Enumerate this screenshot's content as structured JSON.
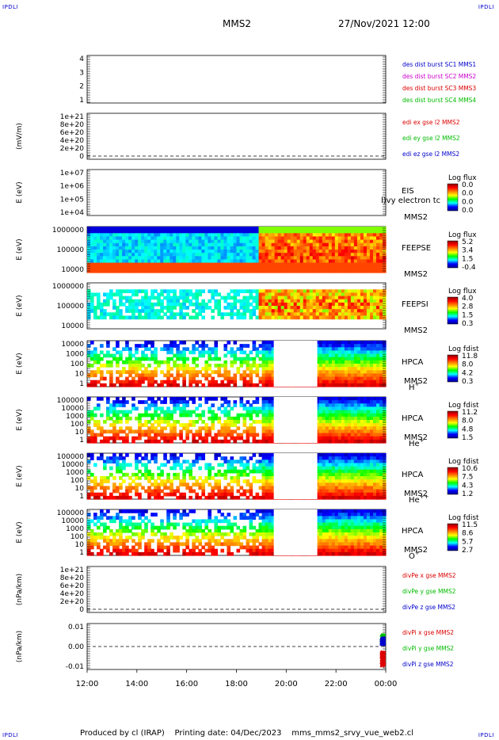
{
  "corners": {
    "tl": "IPDLI",
    "tr": "IPDLI",
    "bl": "IPDLI",
    "br": "IPDLI"
  },
  "header": {
    "spacecraft": "MMS2",
    "datetime": "27/Nov/2021 12:00"
  },
  "footer": {
    "text": "Produced by cl (IRAP)    Printing date: 04/Dec/2023    mms_mms2_srvy_vue_web2.cl"
  },
  "colors": {
    "mms1": "#0000cc",
    "mms2": "#cc00cc",
    "mms3": "#dd0000",
    "mms4": "#00bb00",
    "x": "#dd0000",
    "y": "#00bb00",
    "z": "#0000cc",
    "colorbar": [
      "#00008f",
      "#0000ff",
      "#00ffff",
      "#00ff00",
      "#ffff00",
      "#ff8000",
      "#ff0000",
      "#8f0000"
    ]
  },
  "chart_data": {
    "type": "heatmap",
    "time_axis": {
      "ticks": [
        "12:00",
        "14:00",
        "16:00",
        "18:00",
        "20:00",
        "22:00",
        "00:00"
      ],
      "range": [
        "12:00",
        "00:00"
      ]
    },
    "panels": [
      {
        "id": "dist",
        "type": "line",
        "ylabel": "",
        "ylim": [
          0.5,
          4.5
        ],
        "ticks": [
          "4",
          "3",
          "2",
          "1"
        ],
        "legend": [
          {
            "text": "des dist burst SC1 MMS1",
            "color": "#0000cc"
          },
          {
            "text": "des dist burst SC2 MMS2",
            "color": "#cc00cc"
          },
          {
            "text": "des dist burst SC3 MMS3",
            "color": "#dd0000"
          },
          {
            "text": "des dist burst SC4 MMS4",
            "color": "#00bb00"
          }
        ]
      },
      {
        "id": "edi",
        "type": "line",
        "ylabel": "(mV/m)",
        "ticks": [
          "1e+21",
          "8e+20",
          "6e+20",
          "4e+20",
          "2e+20",
          "0"
        ],
        "zero_line": true,
        "legend": [
          {
            "text": "edi ex gse l2 MMS2",
            "color": "#dd0000"
          },
          {
            "text": "edi ey gse l2 MMS2",
            "color": "#00bb00"
          },
          {
            "text": "edi ez gse l2 MMS2",
            "color": "#0000cc"
          }
        ]
      },
      {
        "id": "eis",
        "type": "heatmap",
        "ylabel": "E (eV)",
        "scale": "log",
        "ticks": [
          "1e+07",
          "1e+06",
          "1e+05",
          "1e+04"
        ],
        "labels": [
          "EIS",
          "MMS2"
        ],
        "overlay": "l)vy electron tc",
        "colorbar": {
          "title": "Log flux",
          "values": [
            "0.0",
            "0.0",
            "0.0",
            "0.0"
          ]
        }
      },
      {
        "id": "feepse",
        "type": "heatmap",
        "ylabel": "E (eV)",
        "scale": "log",
        "ticks": [
          "1000000",
          "100000",
          "10000"
        ],
        "labels": [
          "FEEPSE",
          "MMS2"
        ],
        "colorbar": {
          "title": "Log flux",
          "values": [
            "5.2",
            "3.4",
            "1.5",
            "-0.4"
          ]
        }
      },
      {
        "id": "feepsi",
        "type": "heatmap",
        "ylabel": "E (eV)",
        "scale": "log",
        "ticks": [
          "1000000",
          "100000",
          "10000"
        ],
        "labels": [
          "FEEPSI",
          "MMS2"
        ],
        "colorbar": {
          "title": "Log flux",
          "values": [
            "4.0",
            "2.8",
            "1.5",
            "0.3"
          ]
        }
      },
      {
        "id": "hpca_h",
        "type": "heatmap",
        "ylabel": "E (eV)",
        "scale": "log",
        "ticks": [
          "10000",
          "1000",
          "100",
          "10",
          "1"
        ],
        "labels": [
          "HPCA",
          "MMS2"
        ],
        "species": "H",
        "species_sup": "+",
        "gap": [
          "19:30",
          "21:15"
        ],
        "colorbar": {
          "title": "Log fdist",
          "values": [
            "11.8",
            "8.0",
            "4.2",
            "0.3"
          ]
        }
      },
      {
        "id": "hpca_he",
        "type": "heatmap",
        "ylabel": "E (eV)",
        "scale": "log",
        "ticks": [
          "100000",
          "10000",
          "1000",
          "100",
          "10",
          "1"
        ],
        "labels": [
          "HPCA",
          "MMS2"
        ],
        "species": "He",
        "species_sup": "+",
        "gap": [
          "19:30",
          "21:15"
        ],
        "colorbar": {
          "title": "Log fdist",
          "values": [
            "11.2",
            "8.0",
            "4.8",
            "1.5"
          ]
        }
      },
      {
        "id": "hpca_hepp",
        "type": "heatmap",
        "ylabel": "E (eV)",
        "scale": "log",
        "ticks": [
          "100000",
          "10000",
          "1000",
          "100",
          "10",
          "1"
        ],
        "labels": [
          "HPCA",
          "MMS2"
        ],
        "species": "He",
        "species_sup": "++",
        "gap": [
          "19:30",
          "21:15"
        ],
        "colorbar": {
          "title": "Log fdist",
          "values": [
            "10.6",
            "7.5",
            "4.3",
            "1.2"
          ]
        }
      },
      {
        "id": "hpca_o",
        "type": "heatmap",
        "ylabel": "E (eV)",
        "scale": "log",
        "ticks": [
          "100000",
          "10000",
          "1000",
          "100",
          "10",
          "1"
        ],
        "labels": [
          "HPCA",
          "MMS2"
        ],
        "species": "O",
        "species_sup": "+",
        "gap": [
          "19:30",
          "21:15"
        ],
        "colorbar": {
          "title": "Log fdist",
          "values": [
            "11.5",
            "8.6",
            "5.7",
            "2.7"
          ]
        }
      },
      {
        "id": "divpe",
        "type": "line",
        "ylabel": "(nPa/km)",
        "ticks": [
          "1e+21",
          "8e+20",
          "6e+20",
          "4e+20",
          "2e+20",
          "0"
        ],
        "zero_line": true,
        "legend": [
          {
            "text": "divPe x gse MMS2",
            "color": "#dd0000"
          },
          {
            "text": "divPe y gse MMS2",
            "color": "#00bb00"
          },
          {
            "text": "divPe z gse MMS2",
            "color": "#0000cc"
          }
        ]
      },
      {
        "id": "divpi",
        "type": "line",
        "ylabel": "(nPa/km)",
        "ylim": [
          -0.015,
          0.015
        ],
        "ticks": [
          "0.01",
          "0.00",
          "-0.01"
        ],
        "zero_line": true,
        "series": [
          {
            "name": "divPi x gse MMS2",
            "color": "#dd0000",
            "x": [
              "23:48",
              "23:58"
            ],
            "y_range": [
              -0.013,
              -0.003
            ]
          },
          {
            "name": "divPi y gse MMS2",
            "color": "#00bb00",
            "x": [
              "23:48",
              "23:58"
            ],
            "y_range": [
              0.002,
              0.008
            ]
          },
          {
            "name": "divPi z gse MMS2",
            "color": "#0000cc",
            "x": [
              "23:48",
              "23:58"
            ],
            "y_range": [
              0.001,
              0.006
            ]
          }
        ],
        "legend": [
          {
            "text": "divPi x gse MMS2",
            "color": "#dd0000"
          },
          {
            "text": "divPi y gse MMS2",
            "color": "#00bb00"
          },
          {
            "text": "divPi z gse MMS2",
            "color": "#0000cc"
          }
        ]
      }
    ]
  }
}
